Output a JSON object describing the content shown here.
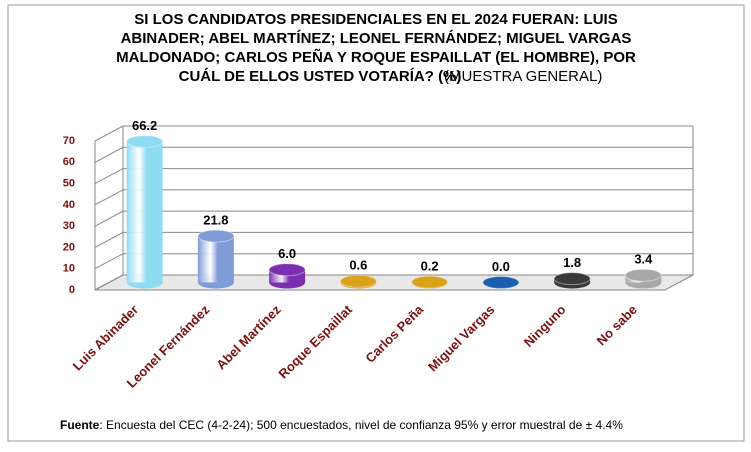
{
  "chart_data": {
    "type": "bar3d",
    "title_lines": [
      "SI LOS CANDIDATOS PRESIDENCIALES EN EL 2024 FUERAN: LUIS",
      "ABINADER; ABEL MARTÍNEZ; LEONEL FERNÁNDEZ; MIGUEL VARGAS",
      "MALDONADO; CARLOS PEÑA Y ROQUE ESPAILLAT (EL HOMBRE), POR",
      "CUÁL DE ELLOS USTED VOTARÍA? (%)"
    ],
    "subtitle": "(MUESTRA GENERAL)",
    "categories": [
      "Luis Abinader",
      "Leonel Fernández",
      "Abel Martínez",
      "Roque Espaillat",
      "Carlos Peña",
      "Miguel Vargas",
      "Ninguno",
      "No sabe"
    ],
    "values": [
      66.2,
      21.8,
      6.0,
      0.6,
      0.2,
      0.0,
      1.8,
      3.4
    ],
    "value_labels": [
      "66.2",
      "21.8",
      "6.0",
      "0.6",
      "0.2",
      "0.0",
      "1.8",
      "3.4"
    ],
    "colors": [
      "#8fdcf2",
      "#7f9bd8",
      "#7a2fb0",
      "#d9a21a",
      "#d9a21a",
      "#1a5fb0",
      "#3a3a3a",
      "#a8a8a8"
    ],
    "ylim": [
      0,
      70
    ],
    "yticks": [
      0,
      10,
      20,
      30,
      40,
      50,
      60,
      70
    ],
    "grid": true,
    "source_label": "Fuente",
    "source_text": ": Encuesta del CEC (4-2-24); 500 encuestados, nivel de confianza 95% y error muestral de ± 4.4%"
  }
}
